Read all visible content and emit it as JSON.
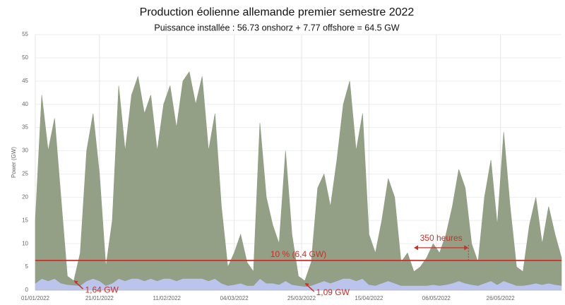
{
  "chart_data": {
    "type": "area",
    "stacked": true,
    "title": "Production éolienne allemande premier semestre 2022",
    "subtitle": "Puissance installée : 56.73 onshorz + 7.77 offshore = 64.5 GW",
    "y_label": "Power (GW)",
    "x": [
      "2022-01-01",
      "2022-01-03",
      "2022-01-05",
      "2022-01-07",
      "2022-01-09",
      "2022-01-11",
      "2022-01-13",
      "2022-01-15",
      "2022-01-17",
      "2022-01-19",
      "2022-01-21",
      "2022-01-23",
      "2022-01-25",
      "2022-01-27",
      "2022-01-29",
      "2022-01-31",
      "2022-02-02",
      "2022-02-04",
      "2022-02-06",
      "2022-02-08",
      "2022-02-10",
      "2022-02-12",
      "2022-02-14",
      "2022-02-16",
      "2022-02-18",
      "2022-02-20",
      "2022-02-22",
      "2022-02-24",
      "2022-02-26",
      "2022-02-28",
      "2022-03-02",
      "2022-03-04",
      "2022-03-06",
      "2022-03-08",
      "2022-03-10",
      "2022-03-12",
      "2022-03-14",
      "2022-03-16",
      "2022-03-18",
      "2022-03-20",
      "2022-03-22",
      "2022-03-24",
      "2022-03-26",
      "2022-03-28",
      "2022-03-30",
      "2022-04-01",
      "2022-04-03",
      "2022-04-05",
      "2022-04-07",
      "2022-04-09",
      "2022-04-11",
      "2022-04-13",
      "2022-04-15",
      "2022-04-17",
      "2022-04-19",
      "2022-04-21",
      "2022-04-23",
      "2022-04-25",
      "2022-04-27",
      "2022-04-29",
      "2022-05-01",
      "2022-05-03",
      "2022-05-05",
      "2022-05-07",
      "2022-05-09",
      "2022-05-11",
      "2022-05-13",
      "2022-05-15",
      "2022-05-17",
      "2022-05-19",
      "2022-05-21",
      "2022-05-23",
      "2022-05-25",
      "2022-05-27",
      "2022-05-29",
      "2022-05-31",
      "2022-06-02",
      "2022-06-04",
      "2022-06-06",
      "2022-06-08",
      "2022-06-10",
      "2022-06-12",
      "2022-06-14"
    ],
    "series": [
      {
        "color": "#b7c1ec",
        "values": [
          1.5,
          2.5,
          2,
          2.5,
          1.5,
          1.2,
          1.1,
          1,
          2,
          2.5,
          2,
          1,
          1.5,
          2.5,
          2,
          2.5,
          2.5,
          2,
          2.5,
          2,
          2.5,
          2.5,
          2,
          2.5,
          2.5,
          2.5,
          2.5,
          2,
          2.5,
          1.5,
          1,
          1.2,
          1.5,
          1,
          1,
          2.5,
          1.5,
          1.5,
          1.2,
          2,
          1.2,
          1,
          0.8,
          1,
          1.5,
          2,
          1.5,
          2,
          2.5,
          2.5,
          2,
          2.5,
          1.2,
          1,
          1.5,
          2,
          1.5,
          1,
          1,
          1,
          1,
          1,
          1.2,
          1,
          1.2,
          1.5,
          2,
          1.5,
          1.2,
          1,
          1.5,
          2,
          1.2,
          2,
          1.5,
          1,
          1,
          1.2,
          1.5,
          1.2,
          1.5,
          1.2,
          1
        ]
      },
      {
        "color": "#8d9b7f",
        "values": [
          13.5,
          39.5,
          28,
          34.5,
          18.5,
          1.8,
          0.9,
          7,
          28,
          35.5,
          23,
          4,
          13.5,
          41.5,
          28,
          39.5,
          43.5,
          36,
          39.5,
          28,
          37.5,
          41.5,
          33,
          42.5,
          44.5,
          37.5,
          43.5,
          28,
          35.5,
          16.5,
          4,
          6.8,
          10.5,
          5,
          3,
          33.5,
          18.5,
          12.5,
          8.8,
          28,
          10.8,
          2,
          1.2,
          5,
          20.5,
          23,
          16.5,
          26,
          37.5,
          42.5,
          28,
          35.5,
          10.8,
          7,
          13.5,
          22,
          18.5,
          5,
          7,
          3,
          4,
          6,
          8.8,
          7,
          10.8,
          16.5,
          24,
          20.5,
          8.8,
          5,
          18.5,
          26,
          12.8,
          32,
          16.5,
          4,
          3,
          12.8,
          18.5,
          8.8,
          16.5,
          10.8,
          6
        ]
      }
    ],
    "xlim": [
      "2022-01-01",
      "2022-06-14"
    ],
    "xticks": [
      {
        "value": "2022-01-01",
        "label": "01/01/2022"
      },
      {
        "value": "2022-01-21",
        "label": "21/01/2022"
      },
      {
        "value": "2022-02-11",
        "label": "11/02/2022"
      },
      {
        "value": "2022-03-04",
        "label": "04/03/2022"
      },
      {
        "value": "2022-03-25",
        "label": "25/03/2022"
      },
      {
        "value": "2022-04-15",
        "label": "15/04/2022"
      },
      {
        "value": "2022-05-06",
        "label": "06/05/2022"
      },
      {
        "value": "2022-05-26",
        "label": "26/05/2022"
      }
    ],
    "ylim": [
      0,
      55
    ],
    "yticks": [
      0,
      5,
      10,
      15,
      20,
      25,
      30,
      35,
      40,
      45,
      50,
      55
    ],
    "grid": true,
    "ref_line": {
      "value": 6.4,
      "label": "10 % (6,4 GW)",
      "color": "#c8302a"
    },
    "annotations": [
      {
        "text": "1,64 GW",
        "x": "2022-01-13",
        "y": 1.64
      },
      {
        "text": "1,09 GW",
        "x": "2022-03-26",
        "y": 1.09
      }
    ],
    "span": {
      "text": "350 heures",
      "start": "2022-04-29",
      "end": "2022-05-16"
    }
  }
}
